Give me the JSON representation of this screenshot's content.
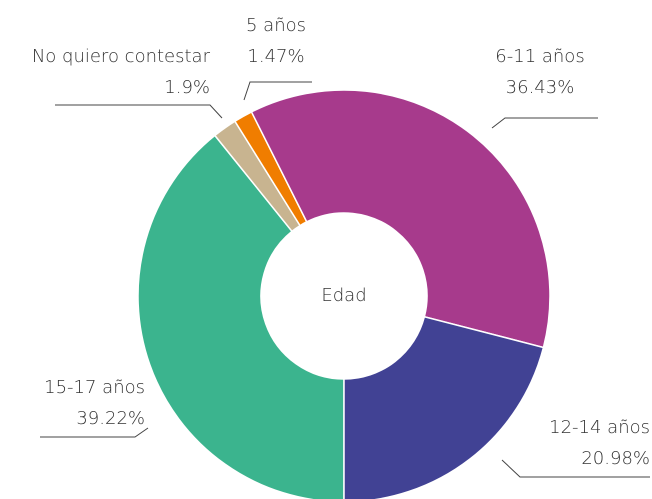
{
  "chart_data": {
    "type": "pie",
    "title": "Edad",
    "categories": [
      "15-17 años",
      "No quiero contestar",
      "5 años",
      "6-11 años",
      "12-14 años"
    ],
    "values": [
      39.22,
      1.9,
      1.47,
      36.43,
      20.98
    ],
    "value_labels": [
      "39.22%",
      "1.9%",
      "1.47%",
      "36.43%",
      "20.98%"
    ],
    "colors": [
      "#3bb48e",
      "#c8b490",
      "#f07d00",
      "#a73a8c",
      "#414294"
    ]
  }
}
